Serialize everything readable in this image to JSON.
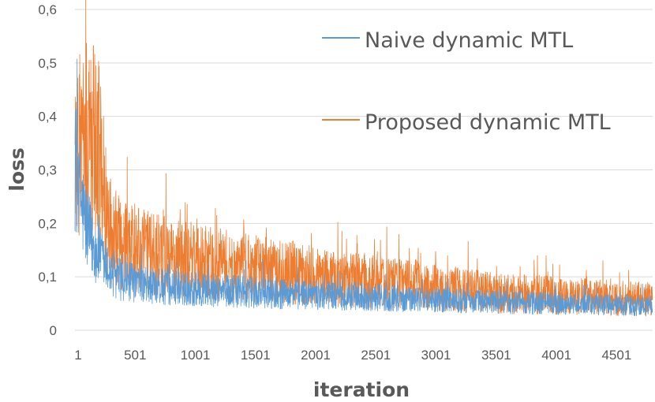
{
  "chart_data": {
    "type": "line",
    "title": "",
    "xlabel": "iteration",
    "ylabel": "loss",
    "x_categories_range": [
      1,
      4800
    ],
    "x_tick_labels": [
      "1",
      "501",
      "1001",
      "1501",
      "2001",
      "2501",
      "3001",
      "3501",
      "4001",
      "4501"
    ],
    "x_tick_values": [
      1,
      501,
      1001,
      1501,
      2001,
      2501,
      3001,
      3501,
      4001,
      4501
    ],
    "y_tick_labels": [
      "0",
      "0,1",
      "0,2",
      "0,3",
      "0,4",
      "0,5",
      "0,6"
    ],
    "y_tick_values": [
      0,
      0.1,
      0.2,
      0.3,
      0.4,
      0.5,
      0.6
    ],
    "ylim": [
      0,
      0.6
    ],
    "grid": "horizontal",
    "legend_position": "top-right",
    "series": [
      {
        "name": "Naive dynamic MTL",
        "color": "#5B9BD5",
        "trend_x": [
          1,
          20,
          60,
          100,
          150,
          200,
          250,
          300,
          400,
          500,
          700,
          1000,
          1500,
          2000,
          2500,
          3000,
          3500,
          4000,
          4500,
          4800
        ],
        "trend_y": [
          0.31,
          0.29,
          0.23,
          0.19,
          0.16,
          0.14,
          0.12,
          0.105,
          0.093,
          0.087,
          0.082,
          0.077,
          0.07,
          0.066,
          0.062,
          0.057,
          0.053,
          0.05,
          0.047,
          0.045
        ]
      },
      {
        "name": "Proposed dynamic MTL",
        "color": "#ED7D31",
        "trend_x": [
          1,
          20,
          60,
          100,
          150,
          200,
          230,
          260,
          300,
          400,
          500,
          700,
          1000,
          1500,
          2000,
          2500,
          3000,
          3500,
          4000,
          4500,
          4800
        ],
        "trend_y": [
          0.33,
          0.35,
          0.34,
          0.35,
          0.36,
          0.33,
          0.28,
          0.22,
          0.18,
          0.155,
          0.15,
          0.14,
          0.13,
          0.115,
          0.1,
          0.09,
          0.08,
          0.07,
          0.065,
          0.06,
          0.058
        ]
      }
    ]
  }
}
